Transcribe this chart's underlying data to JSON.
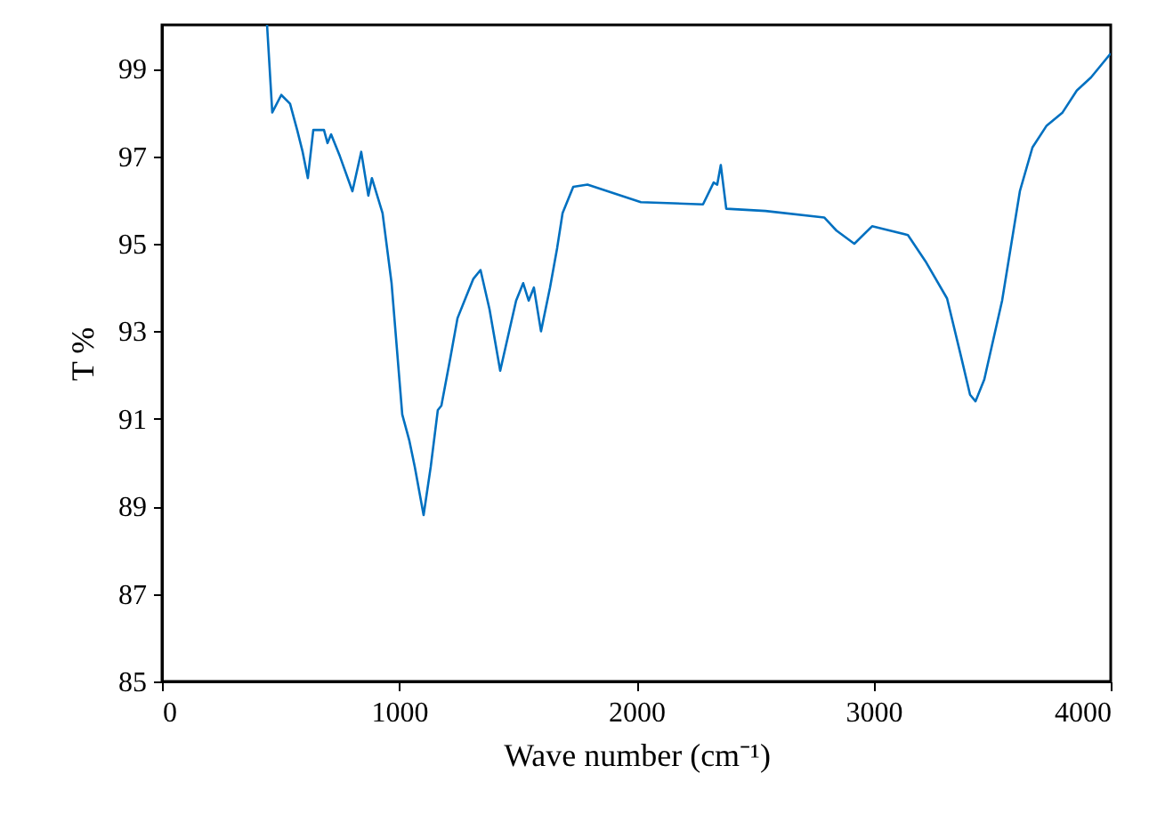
{
  "chart_data": {
    "type": "line",
    "xlabel": "Wave number (cm⁻¹)",
    "ylabel": "T %",
    "xlim": [
      0,
      4000
    ],
    "ylim": [
      85,
      100
    ],
    "xticks": [
      0,
      1000,
      2000,
      3000,
      4000
    ],
    "yticks": [
      85,
      87,
      89,
      91,
      93,
      95,
      97,
      99
    ],
    "grid": false,
    "marker": "none",
    "line_style": "solid",
    "series": [
      {
        "color": "#0070c0",
        "x": [
          443,
          465,
          503,
          540,
          570,
          593,
          615,
          638,
          683,
          698,
          713,
          750,
          803,
          840,
          870,
          885,
          930,
          968,
          1013,
          1043,
          1066,
          1103,
          1133,
          1163,
          1178,
          1216,
          1246,
          1283,
          1313,
          1343,
          1381,
          1426,
          1493,
          1523,
          1546,
          1568,
          1598,
          1636,
          1666,
          1689,
          1734,
          1794,
          2019,
          2281,
          2326,
          2341,
          2356,
          2379,
          2544,
          2792,
          2844,
          2919,
          2994,
          3145,
          3219,
          3310,
          3370,
          3407,
          3430,
          3467,
          3542,
          3617,
          3670,
          3730,
          3797,
          3857,
          3917,
          4000
        ],
        "values": [
          100,
          98.0,
          98.4,
          98.2,
          97.6,
          97.1,
          96.5,
          97.6,
          97.6,
          97.3,
          97.5,
          97.0,
          96.2,
          97.1,
          96.1,
          96.5,
          95.7,
          94.1,
          91.1,
          90.5,
          89.9,
          88.8,
          89.9,
          91.2,
          91.3,
          92.4,
          93.3,
          93.8,
          94.2,
          94.4,
          93.5,
          92.1,
          93.7,
          94.1,
          93.7,
          94.0,
          93.0,
          94.0,
          94.9,
          95.7,
          96.3,
          96.35,
          95.95,
          95.9,
          96.4,
          96.35,
          96.8,
          95.8,
          95.75,
          95.6,
          95.3,
          95.0,
          95.4,
          95.2,
          94.6,
          93.75,
          92.4,
          91.55,
          91.4,
          91.9,
          93.7,
          96.2,
          97.2,
          97.7,
          98.0,
          98.5,
          98.8,
          99.35
        ]
      }
    ]
  }
}
